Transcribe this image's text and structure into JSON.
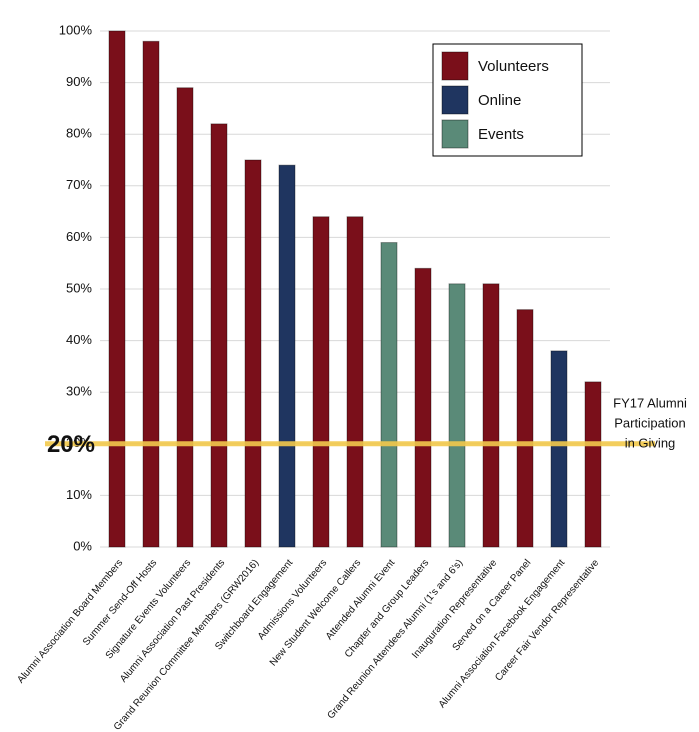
{
  "chart_data": {
    "type": "bar",
    "categories": [
      "Alumni Association Board Members",
      "Summer Send-Off Hosts",
      "Signature Events Volunteers",
      "Alumni Association Past Presidents",
      "Grand Reunion Committee Members (GRW2016)",
      "Switchboard Engagement",
      "Admissions Volunteers",
      "New Student Welcome Callers",
      "Attended Alumni Event",
      "Chapter and Group Leaders",
      "Grand Reunion Attendees Alumni (1's and 6's)",
      "Inauguration Representative",
      "Served on a Career Panel",
      "Alumni Association Facebook Engagement",
      "Career Fair Vendor Representative"
    ],
    "series": [
      {
        "name": "Volunteers",
        "color": "#7a0f1a",
        "values": [
          100,
          98,
          89,
          82,
          75,
          null,
          64,
          64,
          null,
          54,
          null,
          51,
          46,
          null,
          32
        ]
      },
      {
        "name": "Online",
        "color": "#1f3560",
        "values": [
          null,
          null,
          null,
          null,
          null,
          74,
          null,
          null,
          null,
          null,
          null,
          null,
          null,
          38,
          null
        ]
      },
      {
        "name": "Events",
        "color": "#5a8a78",
        "values": [
          null,
          null,
          null,
          null,
          null,
          null,
          null,
          null,
          59,
          null,
          51,
          null,
          null,
          null,
          null
        ]
      }
    ],
    "ylim": [
      0,
      100
    ],
    "yticks": [
      {
        "value": 0,
        "label": "0%"
      },
      {
        "value": 10,
        "label": "10%"
      },
      {
        "value": 20,
        "label": "20%"
      },
      {
        "value": 30,
        "label": "30%"
      },
      {
        "value": 40,
        "label": "40%"
      },
      {
        "value": 50,
        "label": "50%"
      },
      {
        "value": 60,
        "label": "60%"
      },
      {
        "value": 70,
        "label": "70%"
      },
      {
        "value": 80,
        "label": "80%"
      },
      {
        "value": 90,
        "label": "90%"
      },
      {
        "value": 100,
        "label": "100%"
      }
    ],
    "grid": true,
    "reference_line": {
      "value": 20,
      "label": "20%",
      "color": "#f2c94c",
      "annotation": [
        "FY17 Alumni",
        "Participation",
        "in Giving"
      ]
    },
    "legend": "top-right"
  }
}
